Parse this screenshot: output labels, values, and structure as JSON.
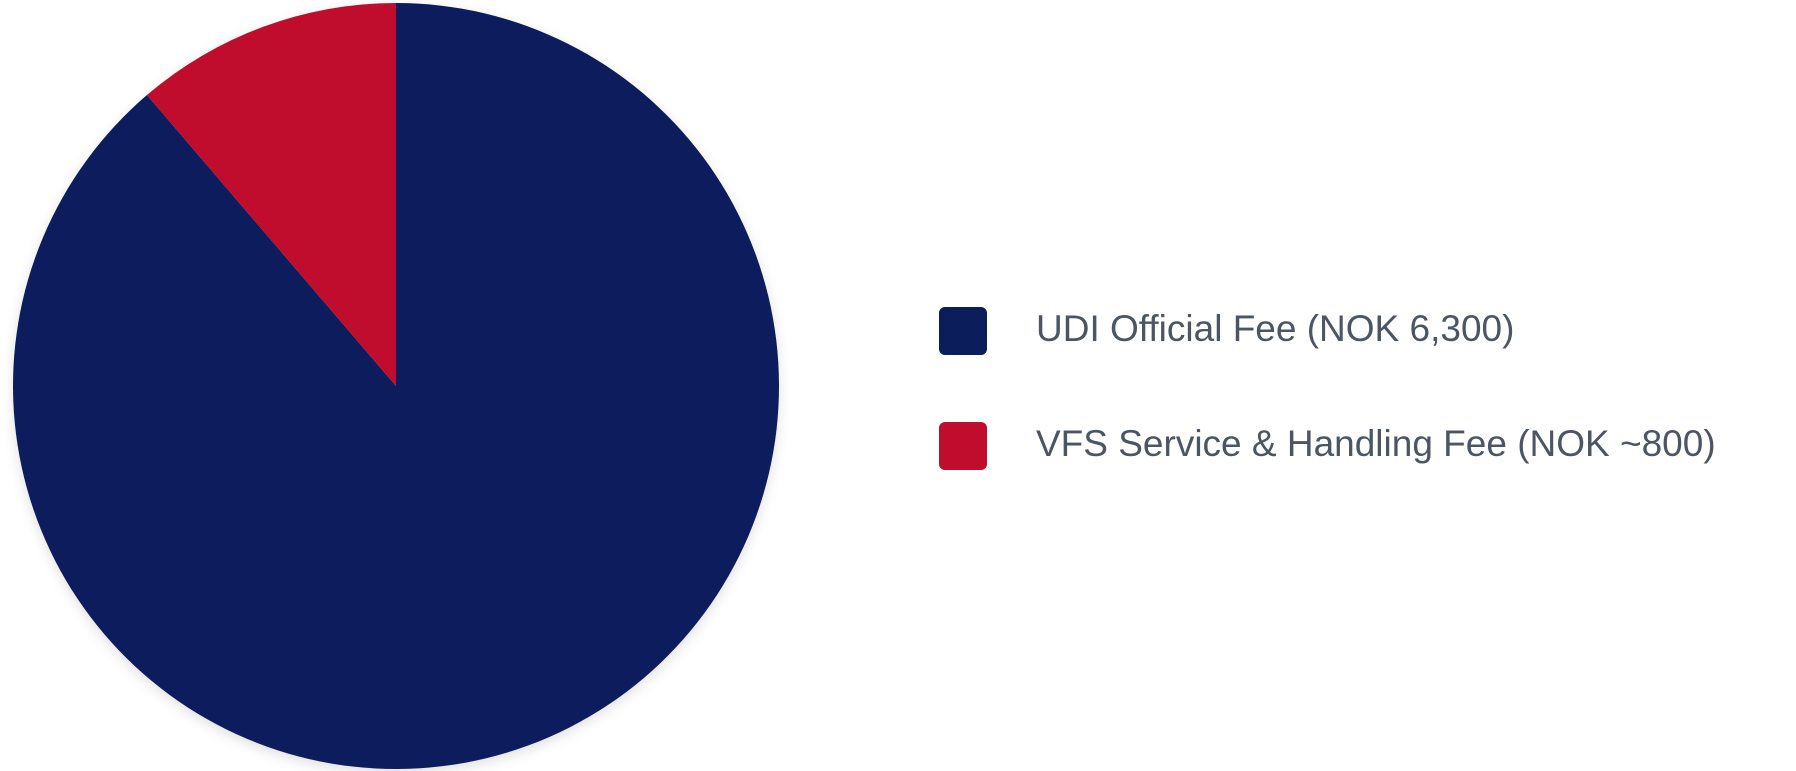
{
  "chart_data": {
    "type": "pie",
    "categories": [
      "UDI Official Fee (NOK 6,300)",
      "VFS Service & Handling Fee (NOK ~800)"
    ],
    "values": [
      6300,
      800
    ],
    "colors": [
      "#0b1e5b",
      "#c00d2e"
    ],
    "legend": "right"
  }
}
